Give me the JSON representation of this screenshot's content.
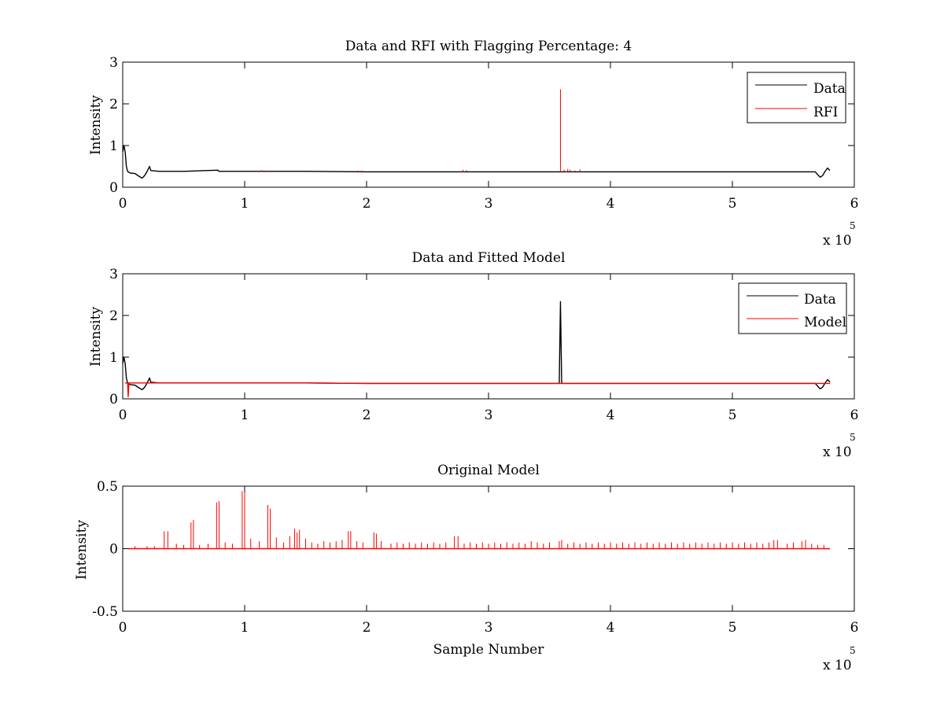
{
  "chart_data": [
    {
      "type": "line",
      "title": "Data and RFI with Flagging Percentage: 4",
      "xlabel": "",
      "ylabel": "Intensity",
      "xlim": [
        0,
        6
      ],
      "ylim": [
        0,
        3
      ],
      "xticks": [
        0,
        1,
        2,
        3,
        4,
        5,
        6
      ],
      "xtick_labels": [
        "0",
        "1",
        "2",
        "3",
        "4",
        "5",
        "6"
      ],
      "yticks": [
        0,
        1,
        2,
        3
      ],
      "ytick_labels": [
        "0",
        "1",
        "2",
        "3"
      ],
      "x_multiplier": {
        "base": "x 10",
        "exponent": "5"
      },
      "legend": {
        "position": "top-right",
        "entries": [
          {
            "label": "Data",
            "color": "#000000"
          },
          {
            "label": "RFI",
            "color": "#ff0000"
          }
        ]
      },
      "series": [
        {
          "name": "Data",
          "color": "#000000",
          "points": [
            [
              0.0,
              0.85
            ],
            [
              0.01,
              1.0
            ],
            [
              0.02,
              0.85
            ],
            [
              0.03,
              0.5
            ],
            [
              0.04,
              0.38
            ],
            [
              0.06,
              0.34
            ],
            [
              0.1,
              0.33
            ],
            [
              0.14,
              0.25
            ],
            [
              0.16,
              0.22
            ],
            [
              0.18,
              0.28
            ],
            [
              0.2,
              0.38
            ],
            [
              0.22,
              0.5
            ],
            [
              0.23,
              0.4
            ],
            [
              0.3,
              0.38
            ],
            [
              0.5,
              0.38
            ],
            [
              0.78,
              0.41
            ],
            [
              0.79,
              0.38
            ],
            [
              1.0,
              0.38
            ],
            [
              1.5,
              0.38
            ],
            [
              2.0,
              0.37
            ],
            [
              2.5,
              0.37
            ],
            [
              3.0,
              0.37
            ],
            [
              3.5,
              0.37
            ],
            [
              4.0,
              0.37
            ],
            [
              4.5,
              0.37
            ],
            [
              5.0,
              0.37
            ],
            [
              5.5,
              0.37
            ],
            [
              5.68,
              0.37
            ],
            [
              5.7,
              0.3
            ],
            [
              5.72,
              0.24
            ],
            [
              5.74,
              0.28
            ],
            [
              5.76,
              0.38
            ],
            [
              5.78,
              0.46
            ],
            [
              5.8,
              0.4
            ]
          ]
        },
        {
          "name": "RFI",
          "color": "#ff0000",
          "spikes": [
            [
              1.14,
              0.41
            ],
            [
              1.2,
              0.4
            ],
            [
              1.93,
              0.4
            ],
            [
              1.96,
              0.4
            ],
            [
              2.79,
              0.42
            ],
            [
              2.82,
              0.41
            ],
            [
              3.59,
              2.35
            ],
            [
              3.62,
              0.42
            ],
            [
              3.65,
              0.44
            ],
            [
              3.67,
              0.42
            ],
            [
              3.71,
              0.4
            ],
            [
              3.75,
              0.43
            ]
          ]
        }
      ]
    },
    {
      "type": "line",
      "title": "Data and Fitted Model",
      "xlabel": "",
      "ylabel": "Intensity",
      "xlim": [
        0,
        6
      ],
      "ylim": [
        0,
        3
      ],
      "xticks": [
        0,
        1,
        2,
        3,
        4,
        5,
        6
      ],
      "xtick_labels": [
        "0",
        "1",
        "2",
        "3",
        "4",
        "5",
        "6"
      ],
      "yticks": [
        0,
        1,
        2,
        3
      ],
      "ytick_labels": [
        "0",
        "1",
        "2",
        "3"
      ],
      "x_multiplier": {
        "base": "x 10",
        "exponent": "5"
      },
      "legend": {
        "position": "top-right",
        "entries": [
          {
            "label": "Data",
            "color": "#000000"
          },
          {
            "label": "Model",
            "color": "#ff0000"
          }
        ]
      },
      "series": [
        {
          "name": "Data",
          "color": "#000000",
          "points": [
            [
              0.0,
              0.85
            ],
            [
              0.01,
              1.0
            ],
            [
              0.02,
              0.85
            ],
            [
              0.03,
              0.5
            ],
            [
              0.04,
              0.38
            ],
            [
              0.06,
              0.34
            ],
            [
              0.1,
              0.33
            ],
            [
              0.14,
              0.25
            ],
            [
              0.16,
              0.22
            ],
            [
              0.18,
              0.28
            ],
            [
              0.2,
              0.38
            ],
            [
              0.22,
              0.5
            ],
            [
              0.23,
              0.4
            ],
            [
              0.3,
              0.38
            ],
            [
              0.5,
              0.38
            ],
            [
              1.0,
              0.38
            ],
            [
              1.5,
              0.38
            ],
            [
              2.0,
              0.37
            ],
            [
              2.5,
              0.37
            ],
            [
              3.0,
              0.37
            ],
            [
              3.5,
              0.37
            ],
            [
              3.58,
              0.37
            ],
            [
              3.59,
              2.33
            ],
            [
              3.6,
              0.37
            ],
            [
              4.0,
              0.37
            ],
            [
              4.5,
              0.37
            ],
            [
              5.0,
              0.37
            ],
            [
              5.5,
              0.37
            ],
            [
              5.68,
              0.37
            ],
            [
              5.7,
              0.3
            ],
            [
              5.72,
              0.24
            ],
            [
              5.74,
              0.28
            ],
            [
              5.76,
              0.38
            ],
            [
              5.78,
              0.46
            ],
            [
              5.8,
              0.4
            ]
          ]
        },
        {
          "name": "Model",
          "color": "#ff0000",
          "points": [
            [
              0.02,
              0.38
            ],
            [
              0.04,
              0.38
            ],
            [
              0.045,
              0.05
            ],
            [
              0.05,
              0.38
            ],
            [
              0.5,
              0.38
            ],
            [
              1.0,
              0.38
            ],
            [
              1.5,
              0.38
            ],
            [
              2.0,
              0.37
            ],
            [
              2.5,
              0.37
            ],
            [
              3.0,
              0.37
            ],
            [
              3.5,
              0.37
            ],
            [
              4.0,
              0.37
            ],
            [
              4.5,
              0.37
            ],
            [
              5.0,
              0.37
            ],
            [
              5.5,
              0.37
            ],
            [
              5.8,
              0.37
            ]
          ]
        }
      ]
    },
    {
      "type": "line",
      "title": "Original Model",
      "xlabel": "Sample Number",
      "ylabel": "Intensity",
      "xlim": [
        0,
        6
      ],
      "ylim": [
        -0.5,
        0.5
      ],
      "xticks": [
        0,
        1,
        2,
        3,
        4,
        5,
        6
      ],
      "xtick_labels": [
        "0",
        "1",
        "2",
        "3",
        "4",
        "5",
        "6"
      ],
      "yticks": [
        -0.5,
        0,
        0.5
      ],
      "ytick_labels": [
        "-0.5",
        "0",
        "0.5"
      ],
      "x_multiplier": {
        "base": "x 10",
        "exponent": "5"
      },
      "series": [
        {
          "name": "",
          "color": "#ff0000",
          "baseline": 0.0,
          "x_start": 0.05,
          "x_end": 5.8,
          "spikes": [
            [
              0.34,
              0.14
            ],
            [
              0.37,
              0.14
            ],
            [
              0.56,
              0.21
            ],
            [
              0.58,
              0.23
            ],
            [
              0.77,
              0.37
            ],
            [
              0.79,
              0.38
            ],
            [
              0.98,
              0.46
            ],
            [
              1.0,
              0.45
            ],
            [
              1.19,
              0.35
            ],
            [
              1.21,
              0.32
            ],
            [
              1.41,
              0.16
            ],
            [
              1.43,
              0.13
            ],
            [
              1.45,
              0.15
            ],
            [
              1.85,
              0.14
            ],
            [
              1.87,
              0.14
            ],
            [
              2.06,
              0.13
            ],
            [
              2.08,
              0.12
            ],
            [
              2.72,
              0.1
            ],
            [
              2.75,
              0.1
            ],
            [
              3.35,
              0.06
            ],
            [
              3.58,
              0.06
            ],
            [
              3.6,
              0.07
            ],
            [
              5.34,
              0.07
            ],
            [
              5.37,
              0.07
            ],
            [
              5.57,
              0.06
            ],
            [
              5.6,
              0.07
            ],
            [
              0.1,
              0.02
            ],
            [
              0.2,
              0.02
            ],
            [
              0.26,
              0.02
            ],
            [
              0.44,
              0.04
            ],
            [
              0.5,
              0.03
            ],
            [
              0.63,
              0.03
            ],
            [
              0.7,
              0.04
            ],
            [
              0.84,
              0.05
            ],
            [
              0.9,
              0.04
            ],
            [
              1.05,
              0.08
            ],
            [
              1.12,
              0.06
            ],
            [
              1.26,
              0.09
            ],
            [
              1.32,
              0.05
            ],
            [
              1.37,
              0.1
            ],
            [
              1.5,
              0.08
            ],
            [
              1.55,
              0.05
            ],
            [
              1.6,
              0.04
            ],
            [
              1.65,
              0.06
            ],
            [
              1.7,
              0.05
            ],
            [
              1.75,
              0.06
            ],
            [
              1.8,
              0.07
            ],
            [
              1.92,
              0.06
            ],
            [
              1.97,
              0.05
            ],
            [
              2.12,
              0.06
            ],
            [
              2.2,
              0.04
            ],
            [
              2.25,
              0.05
            ],
            [
              2.3,
              0.04
            ],
            [
              2.35,
              0.05
            ],
            [
              2.4,
              0.04
            ],
            [
              2.45,
              0.05
            ],
            [
              2.5,
              0.04
            ],
            [
              2.55,
              0.05
            ],
            [
              2.6,
              0.04
            ],
            [
              2.65,
              0.05
            ],
            [
              2.8,
              0.04
            ],
            [
              2.85,
              0.05
            ],
            [
              2.9,
              0.04
            ],
            [
              2.95,
              0.05
            ],
            [
              3.0,
              0.04
            ],
            [
              3.05,
              0.05
            ],
            [
              3.1,
              0.04
            ],
            [
              3.15,
              0.05
            ],
            [
              3.2,
              0.04
            ],
            [
              3.25,
              0.05
            ],
            [
              3.3,
              0.04
            ],
            [
              3.4,
              0.05
            ],
            [
              3.45,
              0.04
            ],
            [
              3.5,
              0.05
            ],
            [
              3.65,
              0.04
            ],
            [
              3.7,
              0.05
            ],
            [
              3.75,
              0.04
            ],
            [
              3.8,
              0.05
            ],
            [
              3.85,
              0.04
            ],
            [
              3.9,
              0.05
            ],
            [
              3.95,
              0.04
            ],
            [
              4.0,
              0.05
            ],
            [
              4.05,
              0.04
            ],
            [
              4.1,
              0.05
            ],
            [
              4.15,
              0.04
            ],
            [
              4.2,
              0.05
            ],
            [
              4.25,
              0.04
            ],
            [
              4.3,
              0.05
            ],
            [
              4.35,
              0.04
            ],
            [
              4.4,
              0.05
            ],
            [
              4.45,
              0.04
            ],
            [
              4.5,
              0.05
            ],
            [
              4.55,
              0.04
            ],
            [
              4.6,
              0.05
            ],
            [
              4.65,
              0.04
            ],
            [
              4.7,
              0.05
            ],
            [
              4.75,
              0.04
            ],
            [
              4.8,
              0.05
            ],
            [
              4.85,
              0.04
            ],
            [
              4.9,
              0.05
            ],
            [
              4.95,
              0.04
            ],
            [
              5.0,
              0.05
            ],
            [
              5.05,
              0.04
            ],
            [
              5.1,
              0.05
            ],
            [
              5.15,
              0.04
            ],
            [
              5.2,
              0.05
            ],
            [
              5.25,
              0.04
            ],
            [
              5.3,
              0.05
            ],
            [
              5.45,
              0.04
            ],
            [
              5.5,
              0.05
            ],
            [
              5.65,
              0.04
            ],
            [
              5.7,
              0.03
            ],
            [
              5.75,
              0.03
            ]
          ]
        }
      ]
    }
  ]
}
